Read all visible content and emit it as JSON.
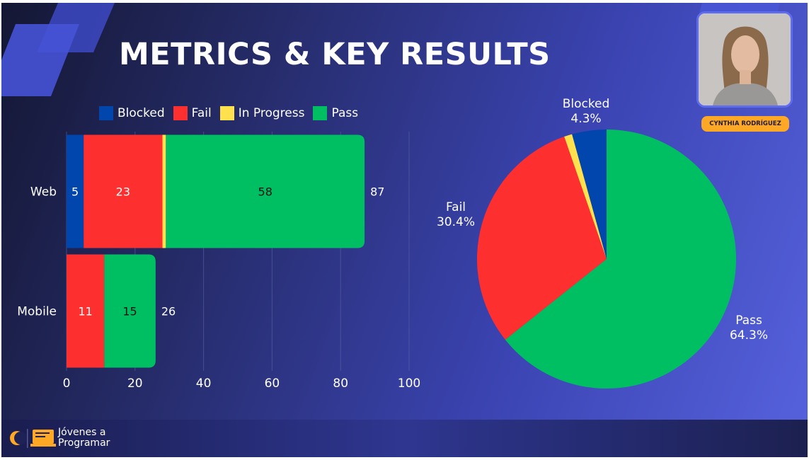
{
  "slide": {
    "title": "METRICS & KEY RESULTS"
  },
  "presenter": {
    "name": "CYNTHIA RODRÍGUEZ"
  },
  "brand": {
    "line1": "Jóvenes a",
    "line2": "Programar"
  },
  "colors": {
    "blocked": "#0046ad",
    "fail": "#fe2f2f",
    "in_progress": "#ffe14d",
    "pass": "#00bf63",
    "accent": "#ffa825"
  },
  "chart_data": [
    {
      "type": "bar",
      "orientation": "horizontal",
      "stacked": true,
      "categories": [
        "Web",
        "Mobile"
      ],
      "series": [
        {
          "name": "Blocked",
          "values": [
            5,
            0
          ],
          "labels": [
            "5",
            ""
          ]
        },
        {
          "name": "Fail",
          "values": [
            23,
            11
          ],
          "labels": [
            "23",
            "11"
          ]
        },
        {
          "name": "In Progress",
          "values": [
            1,
            0
          ],
          "labels": [
            "",
            ""
          ]
        },
        {
          "name": "Pass",
          "values": [
            58,
            15
          ],
          "labels": [
            "58",
            "15"
          ]
        }
      ],
      "totals": [
        "87",
        "26"
      ],
      "xlim": [
        0,
        100
      ],
      "xticks": [
        "0",
        "20",
        "40",
        "60",
        "80",
        "100"
      ],
      "legend": "top",
      "grid": true
    },
    {
      "type": "pie",
      "slices": [
        {
          "name": "Pass",
          "value": 64.3,
          "label": "64.3%"
        },
        {
          "name": "Fail",
          "value": 30.4,
          "label": "30.4%"
        },
        {
          "name": "In Progress",
          "value": 1.0,
          "label": ""
        },
        {
          "name": "Blocked",
          "value": 4.3,
          "label": "4.3%"
        }
      ]
    }
  ]
}
